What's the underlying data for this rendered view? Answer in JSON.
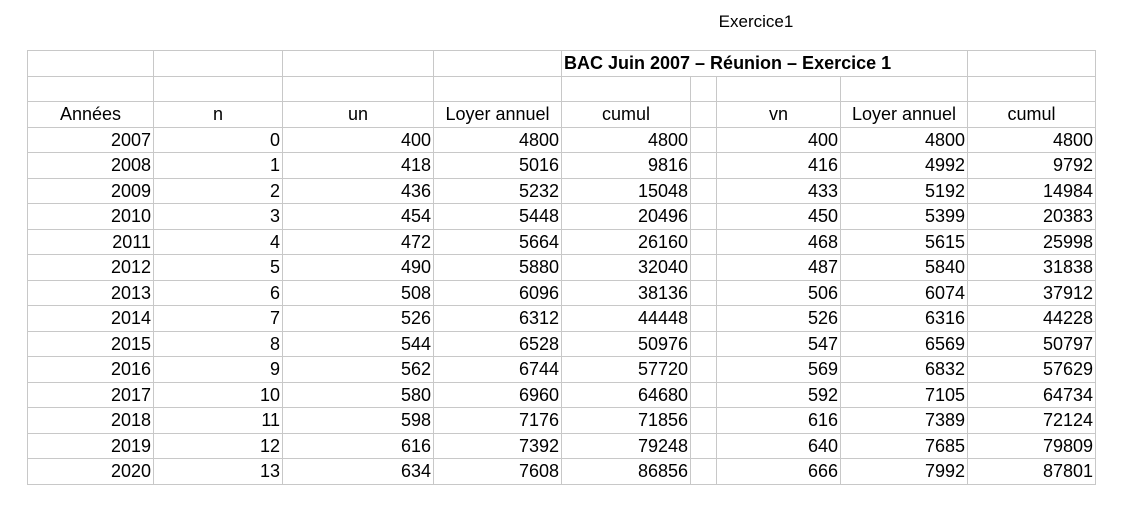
{
  "page_title": "Exercice1",
  "sheet_title": "BAC Juin 2007 – Réunion – Exercice 1",
  "headers": [
    "Années",
    "n",
    "un",
    "Loyer annuel",
    "cumul",
    "",
    "vn",
    "Loyer annuel",
    "cumul"
  ],
  "rows": [
    [
      "2007",
      "0",
      "400",
      "4800",
      "4800",
      "",
      "400",
      "4800",
      "4800"
    ],
    [
      "2008",
      "1",
      "418",
      "5016",
      "9816",
      "",
      "416",
      "4992",
      "9792"
    ],
    [
      "2009",
      "2",
      "436",
      "5232",
      "15048",
      "",
      "433",
      "5192",
      "14984"
    ],
    [
      "2010",
      "3",
      "454",
      "5448",
      "20496",
      "",
      "450",
      "5399",
      "20383"
    ],
    [
      "2011",
      "4",
      "472",
      "5664",
      "26160",
      "",
      "468",
      "5615",
      "25998"
    ],
    [
      "2012",
      "5",
      "490",
      "5880",
      "32040",
      "",
      "487",
      "5840",
      "31838"
    ],
    [
      "2013",
      "6",
      "508",
      "6096",
      "38136",
      "",
      "506",
      "6074",
      "37912"
    ],
    [
      "2014",
      "7",
      "526",
      "6312",
      "44448",
      "",
      "526",
      "6316",
      "44228"
    ],
    [
      "2015",
      "8",
      "544",
      "6528",
      "50976",
      "",
      "547",
      "6569",
      "50797"
    ],
    [
      "2016",
      "9",
      "562",
      "6744",
      "57720",
      "",
      "569",
      "6832",
      "57629"
    ],
    [
      "2017",
      "10",
      "580",
      "6960",
      "64680",
      "",
      "592",
      "7105",
      "64734"
    ],
    [
      "2018",
      "11",
      "598",
      "7176",
      "71856",
      "",
      "616",
      "7389",
      "72124"
    ],
    [
      "2019",
      "12",
      "616",
      "7392",
      "79248",
      "",
      "640",
      "7685",
      "79809"
    ],
    [
      "2020",
      "13",
      "634",
      "7608",
      "86856",
      "",
      "666",
      "7992",
      "87801"
    ]
  ]
}
